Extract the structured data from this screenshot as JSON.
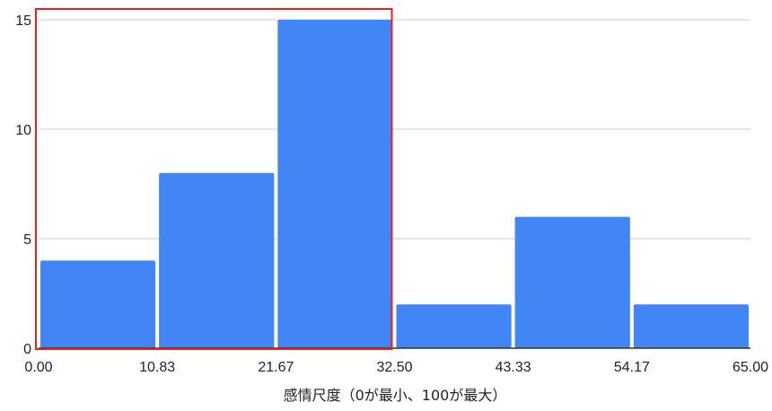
{
  "chart_data": {
    "type": "bar",
    "title": "",
    "xlabel": "感情尺度（0が最小、100が最大）",
    "ylabel": "",
    "bins": [
      {
        "from": 0.0,
        "to": 10.83,
        "value": 4
      },
      {
        "from": 10.83,
        "to": 21.67,
        "value": 8
      },
      {
        "from": 21.67,
        "to": 32.5,
        "value": 15
      },
      {
        "from": 32.5,
        "to": 43.33,
        "value": 2
      },
      {
        "from": 43.33,
        "to": 54.17,
        "value": 6
      },
      {
        "from": 54.17,
        "to": 65.0,
        "value": 2
      }
    ],
    "x_ticks": [
      "0.00",
      "10.83",
      "21.67",
      "32.50",
      "43.33",
      "54.17",
      "65.00"
    ],
    "y_ticks": [
      "0",
      "5",
      "10",
      "15"
    ],
    "xlim": [
      0,
      65
    ],
    "ylim": [
      0,
      15
    ],
    "grid": true,
    "legend": "none",
    "highlight_box": {
      "from": 0.0,
      "to": 32.5,
      "y_from": 0,
      "y_to": 15
    },
    "colors": {
      "bar": "#4285f4",
      "grid": "#cccccc",
      "axis": "#333333",
      "highlight": "#e8211b",
      "text": "#222222"
    }
  }
}
